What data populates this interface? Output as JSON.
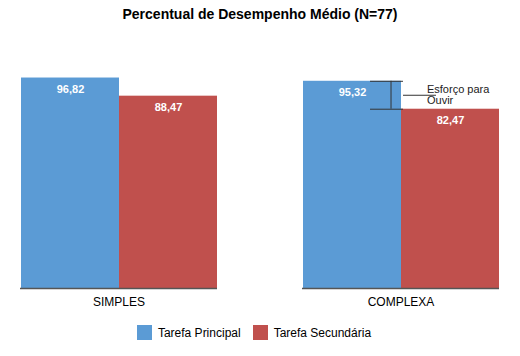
{
  "chart_data": {
    "type": "bar",
    "title": "Percentual de Desempenho Médio (N=77)",
    "categories": [
      "SIMPLES",
      "COMPLEXA"
    ],
    "series": [
      {
        "name": "Tarefa Principal",
        "color": "#5B9BD5",
        "values": [
          96.82,
          95.32
        ],
        "value_labels": [
          "96,82",
          "95,32"
        ]
      },
      {
        "name": "Tarefa Secundária",
        "color": "#C0504D",
        "values": [
          88.47,
          82.47
        ],
        "value_labels": [
          "88,47",
          "82,47"
        ]
      }
    ],
    "ylim": [
      0,
      115
    ],
    "tick_labels": "x",
    "data_labels": true,
    "grid": false,
    "legend": "bottom",
    "annotations": [
      {
        "text": "Esforço para\nOuvir",
        "category": "COMPLEXA"
      }
    ]
  }
}
